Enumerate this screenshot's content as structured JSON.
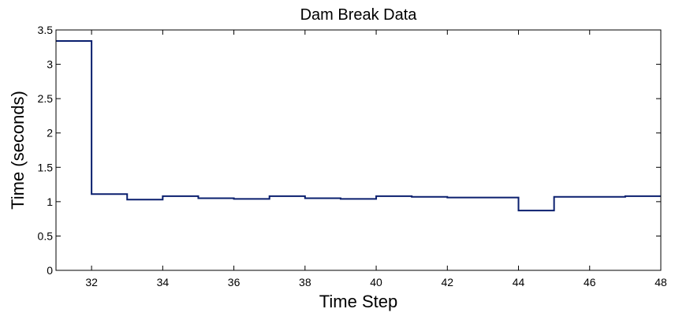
{
  "chart_data": {
    "type": "line",
    "title": "Dam Break Data",
    "xlabel": "Time Step",
    "ylabel": "Time (seconds)",
    "xlim": [
      31,
      48
    ],
    "ylim": [
      0,
      3.5
    ],
    "xticks": [
      32,
      34,
      36,
      38,
      40,
      42,
      44,
      46,
      48
    ],
    "yticks": [
      0,
      0.5,
      1,
      1.5,
      2,
      2.5,
      3,
      3.5
    ],
    "grid": false,
    "step": "post",
    "series": [
      {
        "color": "#0a1f6e",
        "x": [
          31,
          32,
          33,
          34,
          35,
          36,
          37,
          38,
          39,
          40,
          41,
          42,
          43,
          44,
          45,
          46,
          47,
          48
        ],
        "y": [
          3.34,
          1.11,
          1.03,
          1.08,
          1.05,
          1.04,
          1.08,
          1.05,
          1.04,
          1.08,
          1.07,
          1.06,
          1.06,
          0.87,
          1.07,
          1.07,
          1.08,
          1.08
        ]
      }
    ]
  }
}
